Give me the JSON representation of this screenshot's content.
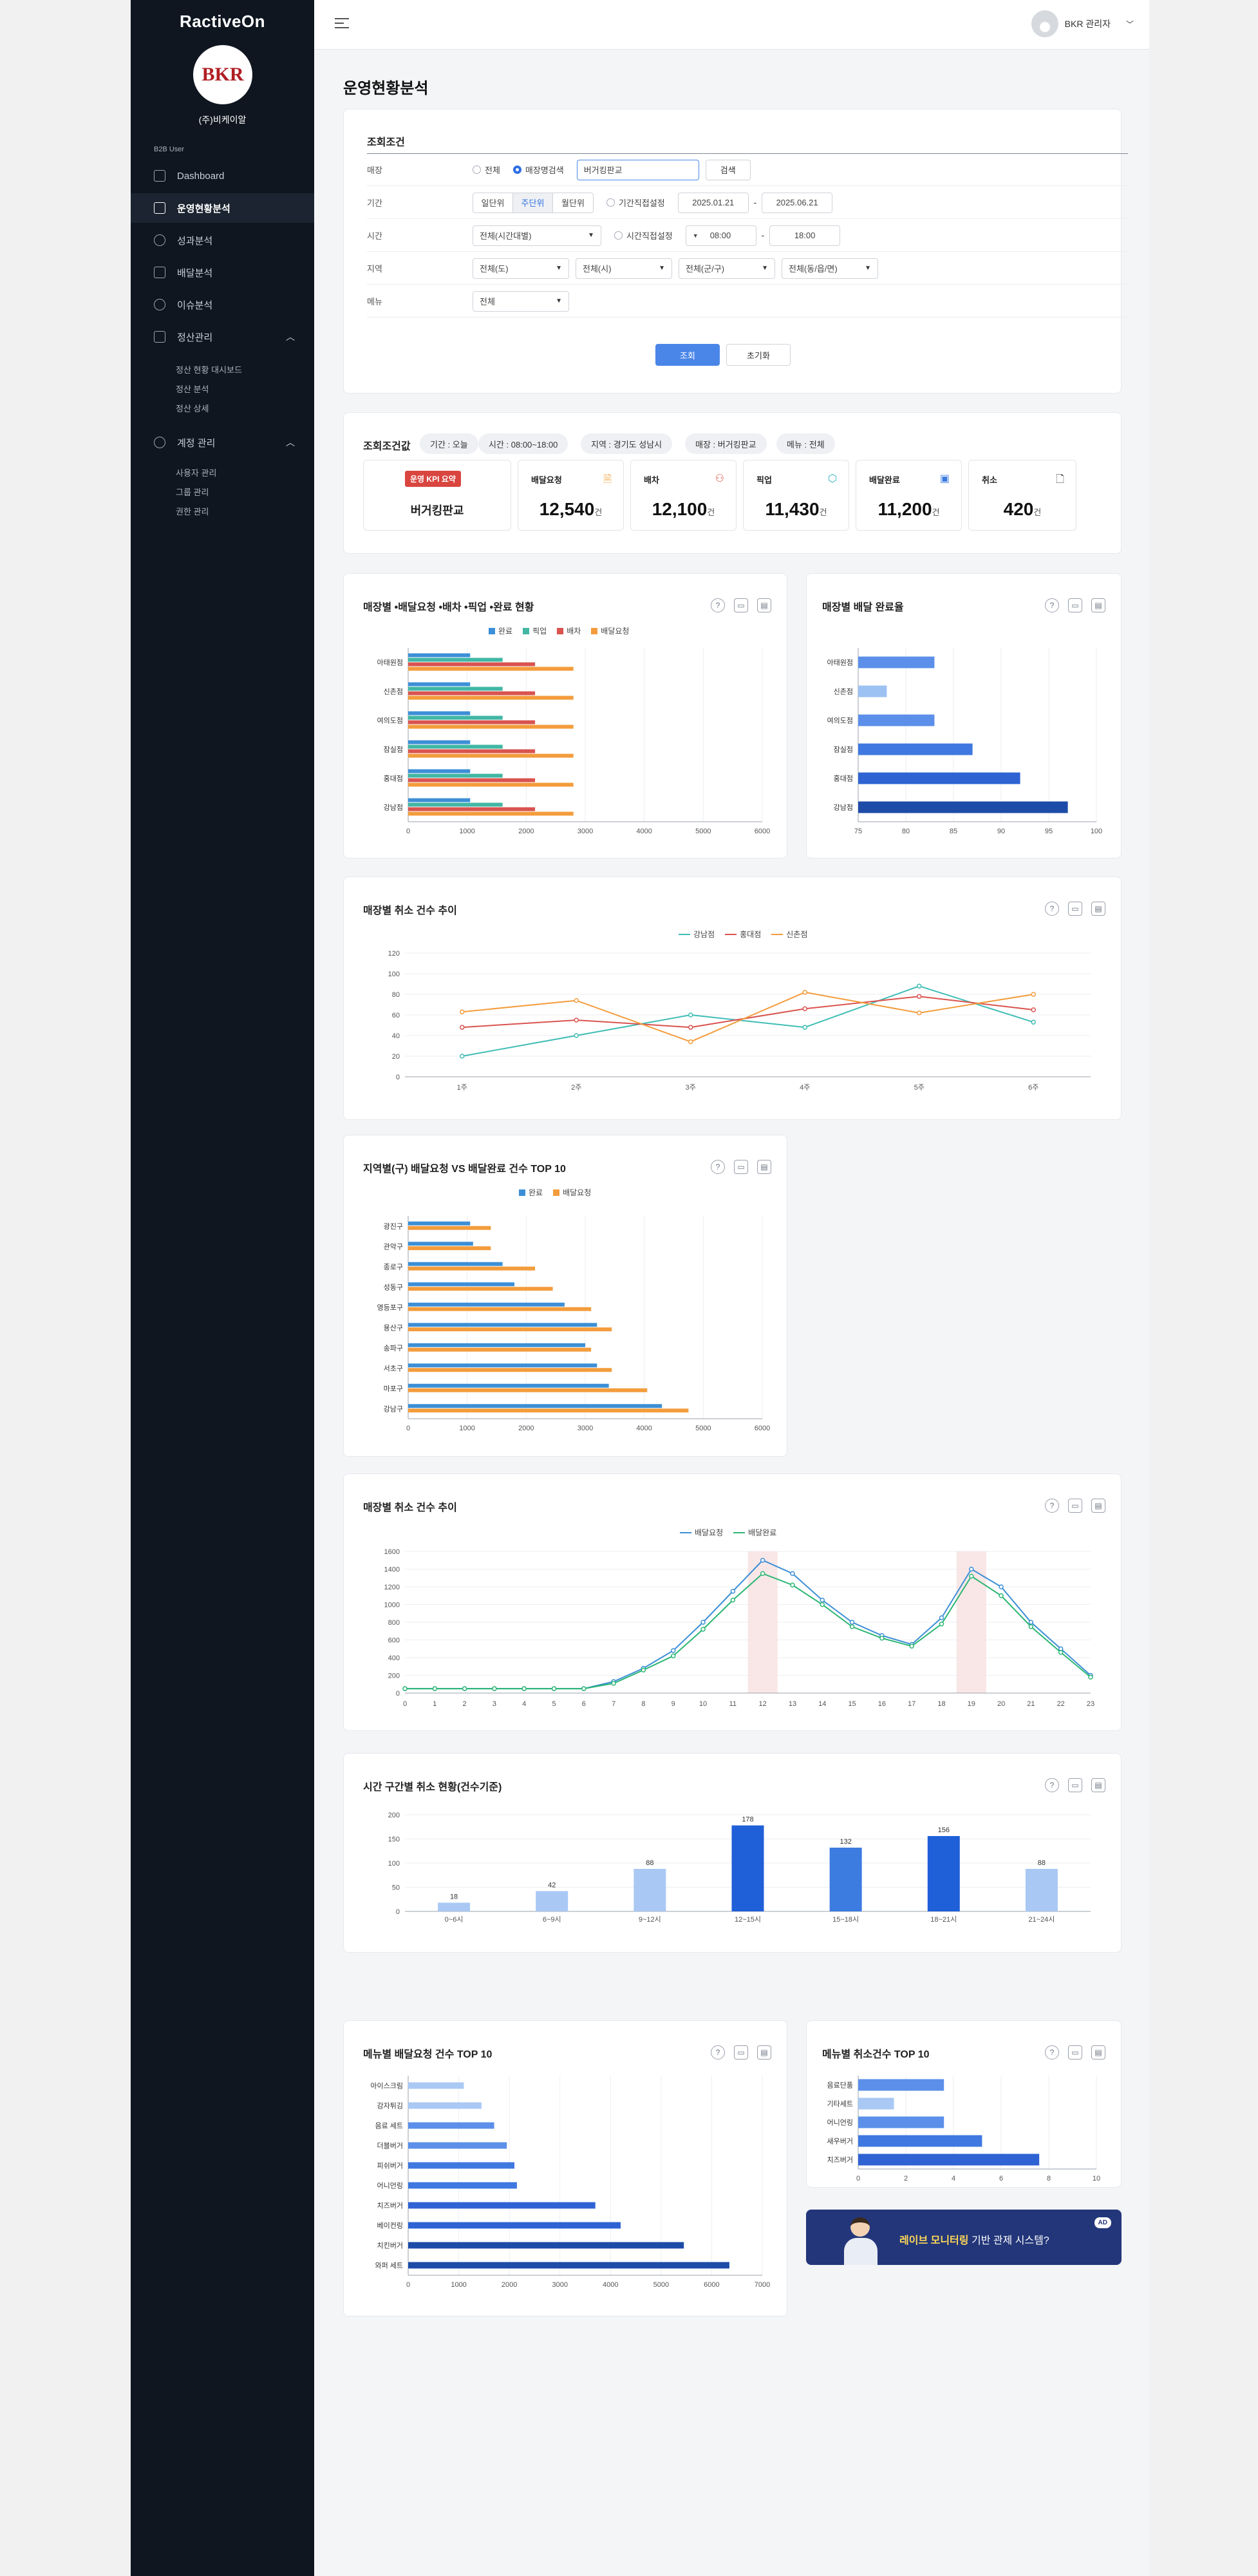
{
  "app": {
    "brand": "RactiveOn",
    "logo_text": "BKR",
    "company": "(주)비케이알",
    "role": "B2B User"
  },
  "sidebar": {
    "items": [
      {
        "label": "Dashboard",
        "icon": "dashboard-icon"
      },
      {
        "label": "운영현황분석",
        "icon": "bar-chart-icon",
        "active": true
      },
      {
        "label": "성과분석",
        "icon": "pie-chart-icon"
      },
      {
        "label": "배달분석",
        "icon": "sort-icon"
      },
      {
        "label": "이슈분석",
        "icon": "check-circle-icon"
      },
      {
        "label": "정산관리",
        "icon": "document-icon",
        "expanded": true
      },
      {
        "label": "계정 관리",
        "icon": "users-icon",
        "expanded": true
      }
    ],
    "settlement_sub": [
      "정산 현황 대시보드",
      "정산 분석",
      "정산 상세"
    ],
    "account_sub": [
      "사용자 관리",
      "그룹 관리",
      "권한 관리"
    ]
  },
  "header": {
    "user_name": "BKR 관리자"
  },
  "page_title": "운영현황분석",
  "filters": {
    "title": "조회조건",
    "store": {
      "label": "매장",
      "opt_all": "전체",
      "opt_search": "매장명검색",
      "value": "버거킹판교",
      "search_btn": "검색"
    },
    "period": {
      "label": "기간",
      "seg": [
        "일단위",
        "주단위",
        "월단위"
      ],
      "seg_selected": "주단위",
      "custom_label": "기간직접설정",
      "from": "2025.01.21",
      "to": "2025.06.21",
      "sep": "-"
    },
    "time": {
      "label": "시간",
      "value": "전체(시간대별)",
      "custom_label": "시간직접설정",
      "from": "08:00",
      "to": "18:00",
      "sep": "-"
    },
    "region": {
      "label": "지역",
      "values": [
        "전체(도)",
        "전체(시)",
        "전체(군/구)",
        "전체(동/읍/면)"
      ]
    },
    "menu": {
      "label": "메뉴",
      "value": "전체"
    },
    "submit": "조회",
    "reset": "초기화"
  },
  "result": {
    "title": "조회조건값",
    "chips": [
      "기간 : 오늘",
      "시간 : 08:00~18:00",
      "지역 : 경기도 성남시",
      "매장 : 버거킹판교",
      "메뉴 : 전체"
    ],
    "kpi_badge": "운영 KPI 요약",
    "store_name": "버거킹판교",
    "unit": "건",
    "kpis": [
      {
        "label": "배달요청",
        "value": "12,540",
        "icon": "document-icon",
        "color": "#f0a23b"
      },
      {
        "label": "배차",
        "value": "12,100",
        "icon": "bike-icon",
        "color": "#e05a4f"
      },
      {
        "label": "픽업",
        "value": "11,430",
        "icon": "box-icon",
        "color": "#2bb3c0"
      },
      {
        "label": "배달완료",
        "value": "11,200",
        "icon": "package-check-icon",
        "color": "#3c7be0"
      },
      {
        "label": "취소",
        "value": "420",
        "icon": "file-cancel-icon",
        "color": "#333333"
      }
    ]
  },
  "charts": {
    "c1": {
      "title": "매장별 •배달요청 •배차 •픽업 •완료 현황",
      "legend": [
        {
          "name": "완료",
          "color": "#3c8fd6"
        },
        {
          "name": "픽업",
          "color": "#41b7a4"
        },
        {
          "name": "배차",
          "color": "#d9534f"
        },
        {
          "name": "배달요청",
          "color": "#f39c3c"
        }
      ]
    },
    "c2": {
      "title": "매장별 배달 완료율"
    },
    "c3": {
      "title": "매장별 취소 건수 추이",
      "legend": [
        {
          "name": "강남점",
          "color": "#3fbdb5"
        },
        {
          "name": "홍대점",
          "color": "#d9534f"
        },
        {
          "name": "신촌점",
          "color": "#f39c3c"
        }
      ]
    },
    "c4": {
      "title": "지역별(구) 배달요청 VS 배달완료 건수 TOP 10",
      "legend": [
        {
          "name": "완료",
          "color": "#3c8fd6"
        },
        {
          "name": "배달요청",
          "color": "#f39c3c"
        }
      ]
    },
    "c5": {
      "title": "매장별 취소 건수 추이",
      "legend": [
        {
          "name": "배달요청",
          "color": "#3c8fd6"
        },
        {
          "name": "배달완료",
          "color": "#2bb673"
        }
      ]
    },
    "c6": {
      "title": "시간 구간별 취소 현황(건수기준)"
    },
    "c7": {
      "title": "메뉴별 배달요청 건수 TOP 10"
    },
    "c8": {
      "title": "메뉴별 취소건수 TOP 10"
    }
  },
  "chart_data": [
    {
      "type": "bar",
      "orientation": "horizontal",
      "categories": [
        "아태원점",
        "신촌점",
        "여의도점",
        "잠실점",
        "홍대점",
        "강남점"
      ],
      "series": [
        {
          "name": "완료",
          "values": [
            1050,
            1050,
            1050,
            1050,
            1050,
            1050
          ]
        },
        {
          "name": "픽업",
          "values": [
            1600,
            1600,
            1600,
            1600,
            1600,
            1600
          ]
        },
        {
          "name": "배차",
          "values": [
            2150,
            2150,
            2150,
            2150,
            2150,
            2150
          ]
        },
        {
          "name": "배달요청",
          "values": [
            2800,
            2800,
            2800,
            2800,
            2800,
            2800
          ]
        }
      ],
      "xlim": [
        0,
        6000
      ],
      "xticks": [
        0,
        1000,
        2000,
        3000,
        4000,
        5000,
        6000
      ],
      "grid": true,
      "legend": "top"
    },
    {
      "type": "bar",
      "orientation": "horizontal",
      "categories": [
        "아태원점",
        "신촌점",
        "여의도점",
        "잠실점",
        "홍대점",
        "강남점"
      ],
      "values": [
        83,
        78,
        83,
        87,
        92,
        97
      ],
      "colors": [
        "#5b8fea",
        "#9cc2f3",
        "#5b8fea",
        "#3f78e0",
        "#2f63d3",
        "#1d4ba8"
      ],
      "xlim": [
        75,
        100
      ],
      "xticks": [
        75,
        80,
        85,
        90,
        95,
        100
      ]
    },
    {
      "type": "line",
      "x": [
        "1주",
        "2주",
        "3주",
        "4주",
        "5주",
        "6주"
      ],
      "series": [
        {
          "name": "강남점",
          "values": [
            20,
            40,
            60,
            48,
            88,
            53
          ]
        },
        {
          "name": "홍대점",
          "values": [
            48,
            55,
            48,
            66,
            78,
            65
          ]
        },
        {
          "name": "신촌점",
          "values": [
            63,
            74,
            34,
            82,
            62,
            80
          ]
        }
      ],
      "ylim": [
        0,
        120
      ],
      "yticks": [
        0,
        20,
        40,
        60,
        80,
        100,
        120
      ],
      "grid": true,
      "legend": "top"
    },
    {
      "type": "bar",
      "orientation": "horizontal",
      "categories": [
        "광진구",
        "관악구",
        "종로구",
        "성동구",
        "영등포구",
        "용산구",
        "송파구",
        "서초구",
        "마포구",
        "강남구"
      ],
      "series": [
        {
          "name": "완료",
          "values": [
            1050,
            1100,
            1600,
            1800,
            2650,
            3200,
            3000,
            3200,
            3400,
            4300
          ]
        },
        {
          "name": "배달요청",
          "values": [
            1400,
            1400,
            2150,
            2450,
            3100,
            3450,
            3100,
            3450,
            4050,
            4750
          ]
        }
      ],
      "xlim": [
        0,
        6000
      ],
      "xticks": [
        0,
        1000,
        2000,
        3000,
        4000,
        5000,
        6000
      ],
      "grid": true,
      "legend": "top"
    },
    {
      "type": "line",
      "x": [
        0,
        1,
        2,
        3,
        4,
        5,
        6,
        7,
        8,
        9,
        10,
        11,
        12,
        13,
        14,
        15,
        16,
        17,
        18,
        19,
        20,
        21,
        22,
        23
      ],
      "series": [
        {
          "name": "배달요청",
          "values": [
            50,
            50,
            50,
            50,
            50,
            50,
            50,
            130,
            280,
            480,
            800,
            1150,
            1500,
            1350,
            1050,
            800,
            650,
            550,
            850,
            1400,
            1200,
            800,
            500,
            200
          ]
        },
        {
          "name": "배달완료",
          "values": [
            50,
            50,
            50,
            50,
            50,
            50,
            50,
            110,
            260,
            420,
            720,
            1050,
            1350,
            1220,
            1000,
            750,
            620,
            530,
            780,
            1320,
            1100,
            750,
            460,
            180
          ]
        }
      ],
      "highlight_x": [
        12,
        19
      ],
      "ylim": [
        0,
        1600
      ],
      "yticks": [
        0,
        200,
        400,
        600,
        800,
        1000,
        1200,
        1400,
        1600
      ],
      "grid": true,
      "legend": "top"
    },
    {
      "type": "bar",
      "categories": [
        "0~6시",
        "6~9시",
        "9~12시",
        "12~15시",
        "15~18시",
        "18~21시",
        "21~24시"
      ],
      "values": [
        18,
        42,
        88,
        178,
        132,
        156,
        88
      ],
      "colors": [
        "#a9c8f4",
        "#a9c8f4",
        "#a9c8f4",
        "#1f5fd8",
        "#3c7be0",
        "#1f5fd8",
        "#a9c8f4"
      ],
      "ylim": [
        0,
        200
      ],
      "yticks": [
        0,
        50,
        100,
        150,
        200
      ],
      "data_labels": true
    },
    {
      "type": "bar",
      "orientation": "horizontal",
      "categories": [
        "아이스크림",
        "감자튀김",
        "음료 세트",
        "더블버거",
        "피쉬버거",
        "어니언링",
        "치즈버거",
        "베이컨링",
        "치킨버거",
        "와퍼 세트"
      ],
      "values": [
        1100,
        1450,
        1700,
        1950,
        2100,
        2150,
        3700,
        4200,
        5450,
        6350
      ],
      "colors": [
        "#a9c8f4",
        "#a9c8f4",
        "#5b8fea",
        "#5b8fea",
        "#3f78e0",
        "#3f78e0",
        "#2f63d3",
        "#2f63d3",
        "#1d4ba8",
        "#1d4ba8"
      ],
      "xlim": [
        0,
        7000
      ],
      "xticks": [
        0,
        1000,
        2000,
        3000,
        4000,
        5000,
        6000,
        7000
      ]
    },
    {
      "type": "bar",
      "orientation": "horizontal",
      "categories": [
        "음료단품",
        "기타세트",
        "어니언링",
        "새우버거",
        "치즈버거"
      ],
      "values": [
        3.6,
        1.5,
        3.6,
        5.2,
        7.6
      ],
      "colors": [
        "#5b8fea",
        "#a9c8f4",
        "#5b8fea",
        "#3f78e0",
        "#2f63d3"
      ],
      "xlim": [
        0,
        10
      ],
      "xticks": [
        0,
        2,
        4,
        6,
        8,
        10
      ]
    }
  ],
  "banner": {
    "highlight": "레이브 모니터링",
    "text": " 기반 관제 시스템?",
    "ad": "AD"
  }
}
